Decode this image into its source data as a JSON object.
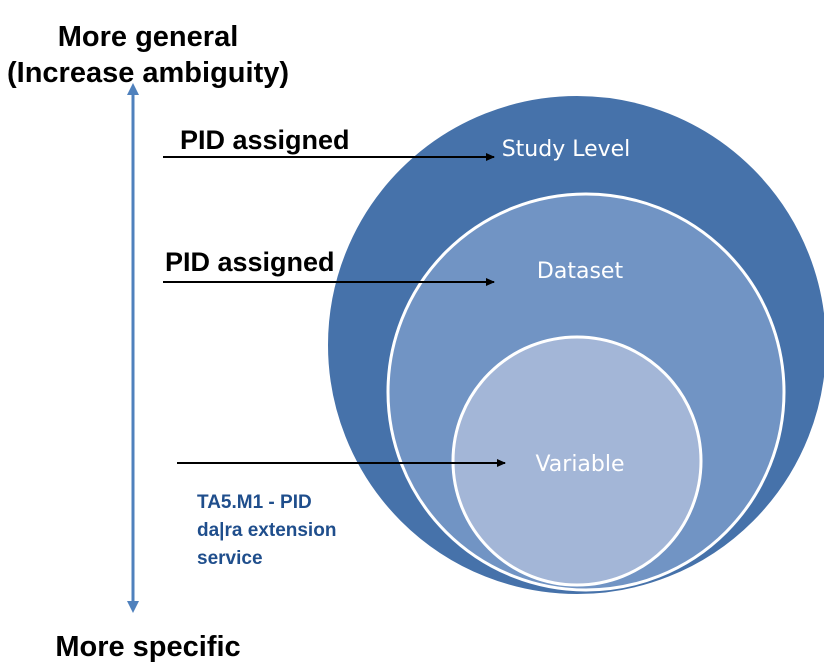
{
  "axis": {
    "top": [
      "More general",
      "(Increase ambiguity)"
    ],
    "bottom": "More specific"
  },
  "arrows": [
    {
      "label": "PID assigned"
    },
    {
      "label": "PID assigned"
    },
    {
      "label": [
        "TA5.M1 - PID",
        "da|ra extension",
        "service"
      ]
    }
  ],
  "circles": [
    {
      "label": "Study Level"
    },
    {
      "label": "Dataset"
    },
    {
      "label": "Variable"
    }
  ]
}
